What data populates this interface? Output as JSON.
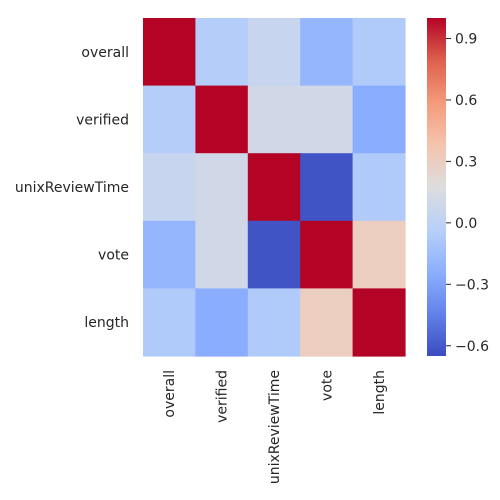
{
  "chart_data": {
    "type": "heatmap",
    "rows": [
      "overall",
      "verified",
      "unixReviewTime",
      "vote",
      "length"
    ],
    "cols": [
      "overall",
      "verified",
      "unixReviewTime",
      "vote",
      "length"
    ],
    "values": [
      [
        1.0,
        -0.05,
        0.05,
        -0.2,
        -0.07
      ],
      [
        -0.05,
        1.0,
        0.1,
        0.1,
        -0.25
      ],
      [
        0.05,
        0.1,
        1.0,
        -0.62,
        -0.07
      ],
      [
        -0.2,
        0.1,
        -0.62,
        1.0,
        0.3
      ],
      [
        -0.07,
        -0.25,
        -0.07,
        0.3,
        1.0
      ]
    ],
    "colormap": "coolwarm",
    "vmin": -0.65,
    "vmax": 1.0,
    "colorbar": {
      "ticks": [
        0.9,
        0.6,
        0.3,
        0.0,
        -0.3,
        -0.6
      ],
      "tick_labels": [
        "0.9",
        "0.6",
        "0.3",
        "0.0",
        "−0.3",
        "−0.6"
      ]
    },
    "title": "",
    "xlabel": "",
    "ylabel": ""
  }
}
